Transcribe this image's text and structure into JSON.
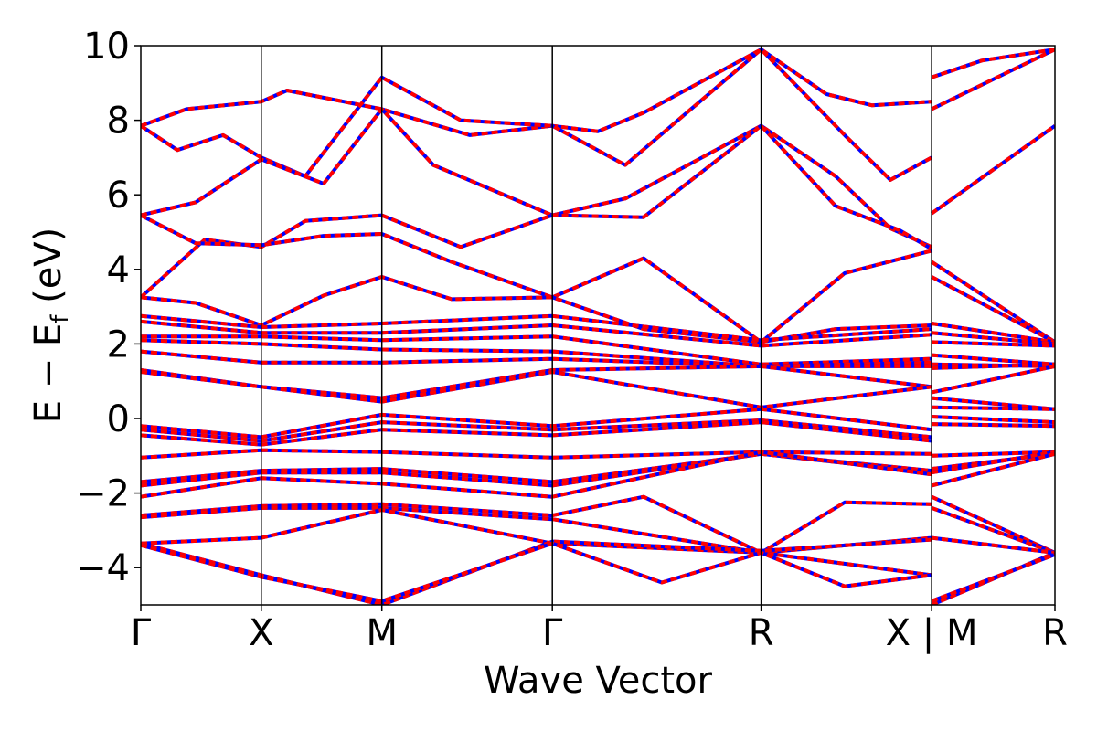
{
  "chart_data": {
    "type": "line",
    "xlabel": "Wave Vector",
    "ylabel": "E − E",
    "ylabel_subscript": "f",
    "ylabel_unit": "(eV)",
    "ylim": [
      -5,
      10
    ],
    "yticks": [
      -4,
      -2,
      0,
      2,
      4,
      6,
      8,
      10
    ],
    "ytick_labels": [
      "−4",
      "−2",
      "0",
      "2",
      "4",
      "6",
      "8",
      "10"
    ],
    "xlim": [
      0,
      1
    ],
    "kpoints": [
      {
        "label": "Γ",
        "x": 0.0
      },
      {
        "label": "X",
        "x": 0.1318
      },
      {
        "label": "M",
        "x": 0.2637
      },
      {
        "label": "Γ",
        "x": 0.4502
      },
      {
        "label": "R",
        "x": 0.6786
      },
      {
        "label": "X | M",
        "x": 0.8651
      },
      {
        "label": "R",
        "x": 1.0
      }
    ],
    "grid": false,
    "legend": "none",
    "colors": {
      "primary": "#ff0000",
      "secondary": "#0000ff"
    },
    "series": [
      {
        "values": [
          [
            0,
            7.85
          ],
          [
            0.05,
            8.3
          ],
          [
            0.1318,
            8.5
          ],
          [
            0.16,
            8.8
          ],
          [
            0.2637,
            8.3
          ],
          [
            0.36,
            7.6
          ],
          [
            0.4502,
            7.85
          ],
          [
            0.5,
            7.7
          ],
          [
            0.55,
            8.2
          ],
          [
            0.6786,
            9.9
          ],
          [
            0.75,
            8.7
          ],
          [
            0.8,
            8.4
          ],
          [
            0.8651,
            8.5
          ],
          [
            0.8651,
            9.15
          ],
          [
            0.92,
            9.6
          ],
          [
            1.0,
            9.9
          ]
        ]
      },
      {
        "values": [
          [
            0,
            7.85
          ],
          [
            0.04,
            7.2
          ],
          [
            0.09,
            7.6
          ],
          [
            0.1318,
            7.0
          ],
          [
            0.18,
            6.5
          ],
          [
            0.2637,
            9.15
          ],
          [
            0.35,
            8.0
          ],
          [
            0.4502,
            7.85
          ],
          [
            0.53,
            6.8
          ],
          [
            0.6786,
            9.9
          ],
          [
            0.77,
            7.6
          ],
          [
            0.82,
            6.4
          ],
          [
            0.8651,
            7.0
          ],
          [
            0.8651,
            8.3
          ],
          [
            1.0,
            9.9
          ]
        ]
      },
      {
        "values": [
          [
            0,
            5.45
          ],
          [
            0.06,
            5.8
          ],
          [
            0.1318,
            6.95
          ],
          [
            0.2,
            6.3
          ],
          [
            0.2637,
            8.3
          ],
          [
            0.32,
            6.8
          ],
          [
            0.4502,
            5.45
          ],
          [
            0.53,
            5.9
          ],
          [
            0.6786,
            7.85
          ],
          [
            0.76,
            6.5
          ],
          [
            0.82,
            5.1
          ],
          [
            0.8651,
            4.6
          ],
          [
            0.8651,
            5.5
          ],
          [
            1.0,
            7.85
          ]
        ]
      },
      {
        "values": [
          [
            0,
            3.25
          ],
          [
            0.07,
            4.8
          ],
          [
            0.1318,
            4.6
          ],
          [
            0.18,
            5.3
          ],
          [
            0.2637,
            5.45
          ],
          [
            0.35,
            4.6
          ],
          [
            0.4502,
            5.45
          ],
          [
            0.55,
            5.4
          ],
          [
            0.6786,
            7.85
          ],
          [
            0.76,
            5.7
          ],
          [
            0.83,
            5.05
          ],
          [
            0.8651,
            4.55
          ],
          [
            0.8651,
            4.2
          ],
          [
            1.0,
            2.05
          ]
        ]
      },
      {
        "values": [
          [
            0,
            5.45
          ],
          [
            0.06,
            4.7
          ],
          [
            0.1318,
            4.65
          ],
          [
            0.2,
            4.9
          ],
          [
            0.2637,
            4.95
          ],
          [
            0.34,
            4.2
          ],
          [
            0.4502,
            3.25
          ],
          [
            0.55,
            4.3
          ],
          [
            0.6786,
            2.05
          ],
          [
            0.77,
            3.9
          ],
          [
            0.8651,
            4.5
          ],
          [
            0.8651,
            3.8
          ],
          [
            1.0,
            2.05
          ]
        ]
      },
      {
        "values": [
          [
            0,
            3.25
          ],
          [
            0.06,
            3.1
          ],
          [
            0.1318,
            2.5
          ],
          [
            0.2,
            3.3
          ],
          [
            0.2637,
            3.8
          ],
          [
            0.34,
            3.2
          ],
          [
            0.4502,
            3.25
          ],
          [
            0.55,
            2.4
          ],
          [
            0.6786,
            2.05
          ],
          [
            0.76,
            2.4
          ],
          [
            0.8651,
            2.5
          ],
          [
            0.8651,
            2.55
          ],
          [
            1.0,
            2.05
          ]
        ]
      },
      {
        "values": [
          [
            0,
            2.75
          ],
          [
            0.1318,
            2.45
          ],
          [
            0.2637,
            2.55
          ],
          [
            0.4502,
            2.75
          ],
          [
            0.6786,
            2.1
          ],
          [
            0.8651,
            2.4
          ],
          [
            0.8651,
            2.3
          ],
          [
            1.0,
            2.0
          ]
        ]
      },
      {
        "values": [
          [
            0,
            2.6
          ],
          [
            0.1318,
            2.3
          ],
          [
            0.2637,
            2.3
          ],
          [
            0.4502,
            2.5
          ],
          [
            0.6786,
            1.95
          ],
          [
            0.8651,
            2.25
          ],
          [
            0.8651,
            2.05
          ],
          [
            1.0,
            1.95
          ]
        ]
      },
      {
        "values": [
          [
            0,
            2.2
          ],
          [
            0.1318,
            2.2
          ],
          [
            0.2637,
            2.1
          ],
          [
            0.4502,
            2.2
          ],
          [
            0.6786,
            1.45
          ],
          [
            0.8651,
            1.6
          ],
          [
            0.8651,
            1.7
          ],
          [
            1.0,
            1.45
          ]
        ]
      },
      {
        "values": [
          [
            0,
            2.1
          ],
          [
            0.1318,
            2.0
          ],
          [
            0.2637,
            1.85
          ],
          [
            0.4502,
            1.8
          ],
          [
            0.6786,
            1.4
          ],
          [
            0.8651,
            1.5
          ],
          [
            0.8651,
            1.45
          ],
          [
            1.0,
            1.4
          ]
        ]
      },
      {
        "values": [
          [
            0,
            1.8
          ],
          [
            0.1318,
            1.5
          ],
          [
            0.2637,
            1.5
          ],
          [
            0.4502,
            1.6
          ],
          [
            0.6786,
            1.4
          ],
          [
            0.8651,
            1.4
          ],
          [
            0.8651,
            1.35
          ],
          [
            1.0,
            1.45
          ]
        ]
      },
      {
        "values": [
          [
            0,
            1.3
          ],
          [
            0.1318,
            0.85
          ],
          [
            0.2637,
            0.55
          ],
          [
            0.4502,
            1.3
          ],
          [
            0.6786,
            1.4
          ],
          [
            0.8651,
            0.85
          ],
          [
            0.8651,
            0.7
          ],
          [
            1.0,
            1.4
          ]
        ]
      },
      {
        "values": [
          [
            0,
            1.25
          ],
          [
            0.1318,
            0.85
          ],
          [
            0.2637,
            0.45
          ],
          [
            0.4502,
            1.25
          ],
          [
            0.6786,
            0.3
          ],
          [
            0.8651,
            0.85
          ],
          [
            0.8651,
            0.55
          ],
          [
            1.0,
            0.25
          ]
        ]
      },
      {
        "values": [
          [
            0,
            -0.2
          ],
          [
            0.1318,
            -0.5
          ],
          [
            0.2637,
            0.1
          ],
          [
            0.4502,
            -0.2
          ],
          [
            0.6786,
            0.25
          ],
          [
            0.8651,
            -0.3
          ],
          [
            0.8651,
            0.3
          ],
          [
            1.0,
            0.25
          ]
        ]
      },
      {
        "values": [
          [
            0,
            -0.3
          ],
          [
            0.1318,
            -0.6
          ],
          [
            0.2637,
            -0.1
          ],
          [
            0.4502,
            -0.3
          ],
          [
            0.6786,
            -0.05
          ],
          [
            0.8651,
            -0.5
          ],
          [
            0.8651,
            0.05
          ],
          [
            1.0,
            -0.1
          ]
        ]
      },
      {
        "values": [
          [
            0,
            -0.45
          ],
          [
            0.1318,
            -0.7
          ],
          [
            0.2637,
            -0.3
          ],
          [
            0.4502,
            -0.45
          ],
          [
            0.6786,
            -0.1
          ],
          [
            0.8651,
            -0.6
          ],
          [
            0.8651,
            -0.15
          ],
          [
            1.0,
            -0.2
          ]
        ]
      },
      {
        "values": [
          [
            0,
            -1.05
          ],
          [
            0.1318,
            -0.85
          ],
          [
            0.2637,
            -0.9
          ],
          [
            0.4502,
            -1.05
          ],
          [
            0.6786,
            -0.9
          ],
          [
            0.8651,
            -0.95
          ],
          [
            0.8651,
            -1.0
          ],
          [
            1.0,
            -0.9
          ]
        ]
      },
      {
        "values": [
          [
            0,
            -1.7
          ],
          [
            0.1318,
            -1.4
          ],
          [
            0.2637,
            -1.35
          ],
          [
            0.4502,
            -1.7
          ],
          [
            0.6786,
            -0.95
          ],
          [
            0.8651,
            -1.4
          ],
          [
            0.8651,
            -1.35
          ],
          [
            1.0,
            -0.95
          ]
        ]
      },
      {
        "values": [
          [
            0,
            -1.8
          ],
          [
            0.1318,
            -1.45
          ],
          [
            0.2637,
            -1.45
          ],
          [
            0.4502,
            -1.8
          ],
          [
            0.6786,
            -0.95
          ],
          [
            0.8651,
            -1.45
          ],
          [
            0.8651,
            -1.45
          ],
          [
            1.0,
            -0.9
          ]
        ]
      },
      {
        "values": [
          [
            0,
            -2.1
          ],
          [
            0.1318,
            -1.6
          ],
          [
            0.2637,
            -1.75
          ],
          [
            0.4502,
            -2.1
          ],
          [
            0.6786,
            -0.9
          ],
          [
            0.8651,
            -1.5
          ],
          [
            0.8651,
            -1.8
          ],
          [
            1.0,
            -0.95
          ]
        ]
      },
      {
        "values": [
          [
            0,
            -2.6
          ],
          [
            0.1318,
            -2.35
          ],
          [
            0.2637,
            -2.3
          ],
          [
            0.4502,
            -2.6
          ],
          [
            0.55,
            -2.1
          ],
          [
            0.6786,
            -3.6
          ],
          [
            0.77,
            -2.25
          ],
          [
            0.8651,
            -2.3
          ],
          [
            0.8651,
            -2.1
          ],
          [
            1.0,
            -3.6
          ]
        ]
      },
      {
        "values": [
          [
            0,
            -2.65
          ],
          [
            0.1318,
            -2.4
          ],
          [
            0.2637,
            -2.4
          ],
          [
            0.4502,
            -2.7
          ],
          [
            0.6786,
            -3.6
          ],
          [
            0.8651,
            -3.2
          ],
          [
            0.8651,
            -2.4
          ],
          [
            1.0,
            -3.6
          ]
        ]
      },
      {
        "values": [
          [
            0,
            -3.35
          ],
          [
            0.1318,
            -3.2
          ],
          [
            0.2637,
            -2.45
          ],
          [
            0.4502,
            -3.35
          ],
          [
            0.6786,
            -3.6
          ],
          [
            0.8651,
            -4.2
          ],
          [
            0.8651,
            -3.2
          ],
          [
            1.0,
            -3.6
          ]
        ]
      },
      {
        "values": [
          [
            0,
            -3.35
          ],
          [
            0.1318,
            -4.2
          ],
          [
            0.2637,
            -5.0
          ],
          [
            0.4502,
            -3.3
          ],
          [
            0.6786,
            -3.55
          ],
          [
            0.8651,
            -3.25
          ],
          [
            0.8651,
            -5.0
          ],
          [
            1.0,
            -3.6
          ]
        ]
      },
      {
        "values": [
          [
            0,
            -3.4
          ],
          [
            0.1318,
            -4.25
          ],
          [
            0.2637,
            -4.9
          ],
          [
            0.4502,
            -3.35
          ],
          [
            0.57,
            -4.4
          ],
          [
            0.6786,
            -3.6
          ],
          [
            0.77,
            -4.5
          ],
          [
            0.8651,
            -4.2
          ],
          [
            0.8651,
            -4.9
          ],
          [
            1.0,
            -3.65
          ]
        ]
      }
    ]
  }
}
